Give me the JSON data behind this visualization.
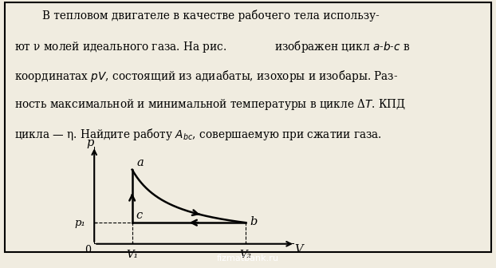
{
  "background_color": "#f0ece0",
  "background_color_main": "#e8e4d8",
  "point_a": [
    1.0,
    3.5
  ],
  "point_b": [
    4.0,
    1.0
  ],
  "point_c": [
    1.0,
    1.0
  ],
  "label_a": "a",
  "label_b": "b",
  "label_c": "c",
  "label_p": "p",
  "label_V": "V",
  "label_p1": "p₁",
  "label_V1": "V₁",
  "label_V2": "V₂",
  "label_O": "0",
  "xlim": [
    0,
    5.5
  ],
  "ylim": [
    0,
    4.8
  ],
  "line_color": "#000000",
  "font_size_text": 9.8,
  "font_size_labels": 10.5,
  "text_lines": [
    "        В тепловом двигателе в качестве рабочего тела использу-",
    "ют ν молей идеального газа. На рис.              изображен цикл $a$-$b$-$c$ в",
    "координатах $p$$V$, состоящий из адиабаты, изохоры и изобары. Раз-",
    "ность максимальной и минимальной температуры в цикле Δ$T$. КПД",
    "цикла — η. Найдите работу $A_{bc}$, совершаемую при сжатии газа."
  ]
}
